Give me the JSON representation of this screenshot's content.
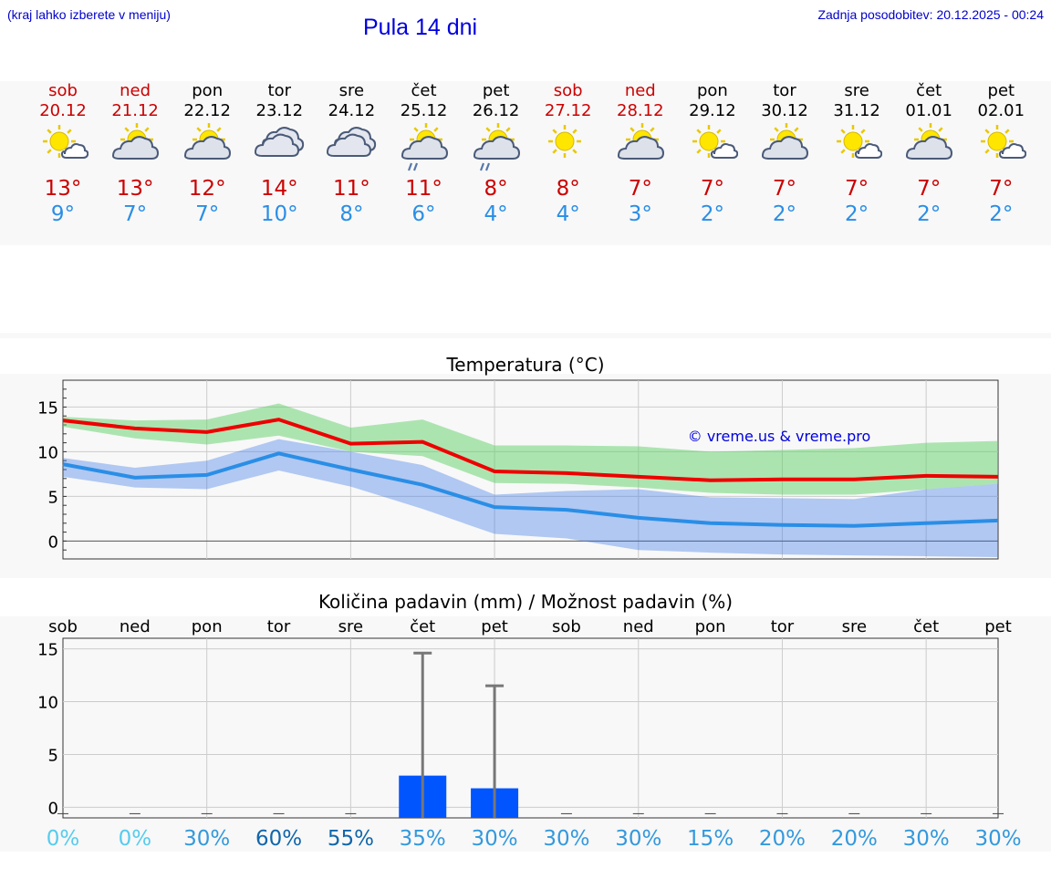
{
  "header": {
    "menu_hint": "(kraj lahko izberete v meniju)",
    "title": "Pula 14 dni",
    "updated": "Zadnja posodobitev: 20.12.2025 - 00:24"
  },
  "colors": {
    "max_temp": "#cc0000",
    "min_temp": "#2a8ee6",
    "weekend": "#cc0000",
    "precip_bar": "#0055ff"
  },
  "days": [
    {
      "name": "sob",
      "date": "20.12",
      "weekend": true,
      "icon": "partly-sunny-icon",
      "max": "13°",
      "min": "9°"
    },
    {
      "name": "ned",
      "date": "21.12",
      "weekend": true,
      "icon": "partly-cloudy-icon",
      "max": "13°",
      "min": "7°"
    },
    {
      "name": "pon",
      "date": "22.12",
      "weekend": false,
      "icon": "partly-cloudy-icon",
      "max": "12°",
      "min": "7°"
    },
    {
      "name": "tor",
      "date": "23.12",
      "weekend": false,
      "icon": "cloudy-icon",
      "max": "14°",
      "min": "10°"
    },
    {
      "name": "sre",
      "date": "24.12",
      "weekend": false,
      "icon": "cloudy-icon",
      "max": "11°",
      "min": "8°"
    },
    {
      "name": "čet",
      "date": "25.12",
      "weekend": false,
      "icon": "partly-cloudy-rain-icon",
      "max": "11°",
      "min": "6°"
    },
    {
      "name": "pet",
      "date": "26.12",
      "weekend": false,
      "icon": "partly-cloudy-rain-icon",
      "max": "8°",
      "min": "4°"
    },
    {
      "name": "sob",
      "date": "27.12",
      "weekend": true,
      "icon": "sunny-icon",
      "max": "8°",
      "min": "4°"
    },
    {
      "name": "ned",
      "date": "28.12",
      "weekend": true,
      "icon": "partly-cloudy-icon",
      "max": "7°",
      "min": "3°"
    },
    {
      "name": "pon",
      "date": "29.12",
      "weekend": false,
      "icon": "partly-sunny-icon",
      "max": "7°",
      "min": "2°"
    },
    {
      "name": "tor",
      "date": "30.12",
      "weekend": false,
      "icon": "partly-cloudy-icon",
      "max": "7°",
      "min": "2°"
    },
    {
      "name": "sre",
      "date": "31.12",
      "weekend": false,
      "icon": "partly-sunny-icon",
      "max": "7°",
      "min": "2°"
    },
    {
      "name": "čet",
      "date": "01.01",
      "weekend": false,
      "icon": "partly-cloudy-icon",
      "max": "7°",
      "min": "2°"
    },
    {
      "name": "pet",
      "date": "02.01",
      "weekend": false,
      "icon": "partly-sunny-icon",
      "max": "7°",
      "min": "2°"
    }
  ],
  "chart_data": [
    {
      "type": "line",
      "title": "Temperatura (°C)",
      "watermark": "© vreme.us & vreme.pro",
      "ylim": [
        -2,
        18
      ],
      "yticks": [
        0,
        5,
        10,
        15
      ],
      "x": [
        0,
        1,
        2,
        3,
        4,
        5,
        6,
        7,
        8,
        9,
        10,
        11,
        12,
        13
      ],
      "series": [
        {
          "name": "max",
          "values": [
            13.5,
            12.6,
            12.2,
            13.6,
            10.9,
            11.1,
            7.8,
            7.6,
            7.2,
            6.8,
            6.9,
            6.9,
            7.3,
            7.2
          ],
          "band_low": [
            12.8,
            11.5,
            10.8,
            11.8,
            10.0,
            9.5,
            6.5,
            6.4,
            6.0,
            5.4,
            5.2,
            5.2,
            5.8,
            6.4
          ],
          "band_high": [
            13.9,
            13.5,
            13.6,
            15.4,
            12.7,
            13.6,
            10.7,
            10.7,
            10.6,
            10.0,
            10.2,
            10.4,
            11.0,
            11.2
          ]
        },
        {
          "name": "min",
          "values": [
            8.6,
            7.1,
            7.4,
            9.8,
            8.0,
            6.3,
            3.8,
            3.5,
            2.6,
            2.0,
            1.8,
            1.7,
            2.0,
            2.3
          ],
          "band_low": [
            7.2,
            6.0,
            5.8,
            7.9,
            6.1,
            3.6,
            0.8,
            0.3,
            -1.0,
            -1.3,
            -1.5,
            -1.6,
            -1.7,
            -1.8
          ],
          "band_high": [
            9.3,
            8.2,
            9.0,
            11.4,
            10.0,
            8.5,
            5.2,
            5.6,
            5.8,
            4.9,
            4.8,
            4.7,
            5.8,
            6.4
          ]
        }
      ]
    },
    {
      "type": "bar",
      "title": "Količina padavin (mm) / Možnost padavin (%)",
      "categories": [
        "sob",
        "ned",
        "pon",
        "tor",
        "sre",
        "čet",
        "pet",
        "sob",
        "ned",
        "pon",
        "tor",
        "sre",
        "čet",
        "pet"
      ],
      "ylim": [
        -1,
        16
      ],
      "yticks": [
        0,
        5,
        10,
        15
      ],
      "values": [
        0,
        0,
        0,
        0,
        0,
        3.0,
        1.8,
        0,
        0,
        0,
        0,
        0,
        0,
        0
      ],
      "error_max": [
        0,
        0,
        0,
        0,
        0,
        14.6,
        11.5,
        0,
        0,
        0,
        0,
        0,
        0,
        0
      ],
      "probability": [
        "0%",
        "0%",
        "30%",
        "60%",
        "55%",
        "35%",
        "30%",
        "30%",
        "30%",
        "15%",
        "20%",
        "20%",
        "30%",
        "30%"
      ],
      "probability_colors": [
        "#55ccee",
        "#55ccee",
        "#3399dd",
        "#1166aa",
        "#1166aa",
        "#3399dd",
        "#3399dd",
        "#3399dd",
        "#3399dd",
        "#3399dd",
        "#3399dd",
        "#3399dd",
        "#3399dd",
        "#3399dd"
      ]
    }
  ]
}
